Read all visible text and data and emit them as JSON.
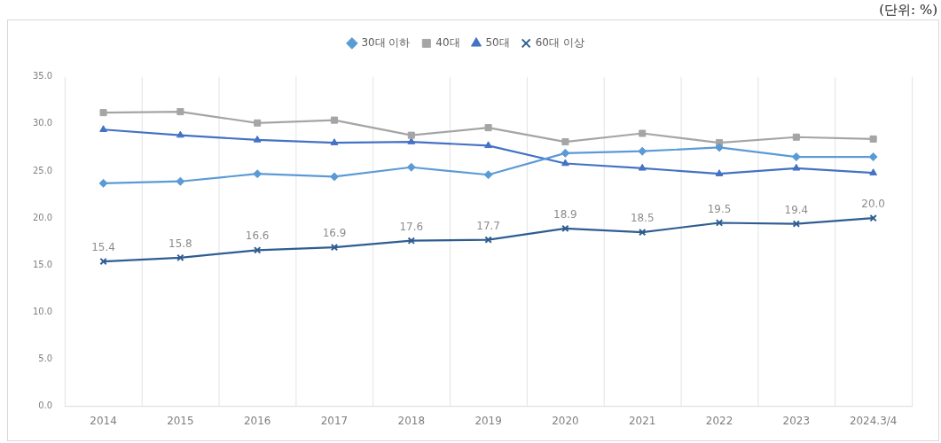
{
  "chart_data": {
    "type": "line",
    "categories": [
      "2014",
      "2015",
      "2016",
      "2017",
      "2018",
      "2019",
      "2020",
      "2021",
      "2022",
      "2023",
      "2024.3/4"
    ],
    "series": [
      {
        "name": "30대 이하",
        "color": "#5b9bd5",
        "marker": "diamond",
        "values": [
          23.7,
          23.9,
          24.7,
          24.4,
          25.4,
          24.6,
          26.9,
          27.1,
          27.5,
          26.5,
          26.5
        ]
      },
      {
        "name": "40대",
        "color": "#a5a5a5",
        "marker": "square",
        "values": [
          31.2,
          31.3,
          30.1,
          30.4,
          28.8,
          29.6,
          28.1,
          29.0,
          28.0,
          28.6,
          28.4
        ]
      },
      {
        "name": "50대",
        "color": "#4472c4",
        "marker": "triangle",
        "values": [
          29.4,
          28.8,
          28.3,
          28.0,
          28.1,
          27.7,
          25.8,
          25.3,
          24.7,
          25.3,
          24.8
        ]
      },
      {
        "name": "60대 이상",
        "color": "#2f5d91",
        "marker": "cross",
        "values": [
          15.4,
          15.8,
          16.6,
          16.9,
          17.6,
          17.7,
          18.9,
          18.5,
          19.5,
          19.4,
          20.0
        ],
        "value_labels": [
          "15.4",
          "15.8",
          "16.6",
          "16.9",
          "17.6",
          "17.7",
          "18.9",
          "18.5",
          "19.5",
          "19.4",
          "20.0"
        ]
      }
    ],
    "ylim": [
      0,
      35
    ],
    "yticks": [
      {
        "value": 0,
        "label": "0.0"
      },
      {
        "value": 5,
        "label": "5.0"
      },
      {
        "value": 10,
        "label": "10.0"
      },
      {
        "value": 15,
        "label": "15.0"
      },
      {
        "value": 20,
        "label": "20.0"
      },
      {
        "value": 25,
        "label": "25.0"
      },
      {
        "value": 30,
        "label": "30.0"
      },
      {
        "value": 35,
        "label": "35.0"
      }
    ],
    "grid": "x",
    "legend": "top",
    "line_style": "solid",
    "annotations": [
      "(단위: %)"
    ]
  }
}
